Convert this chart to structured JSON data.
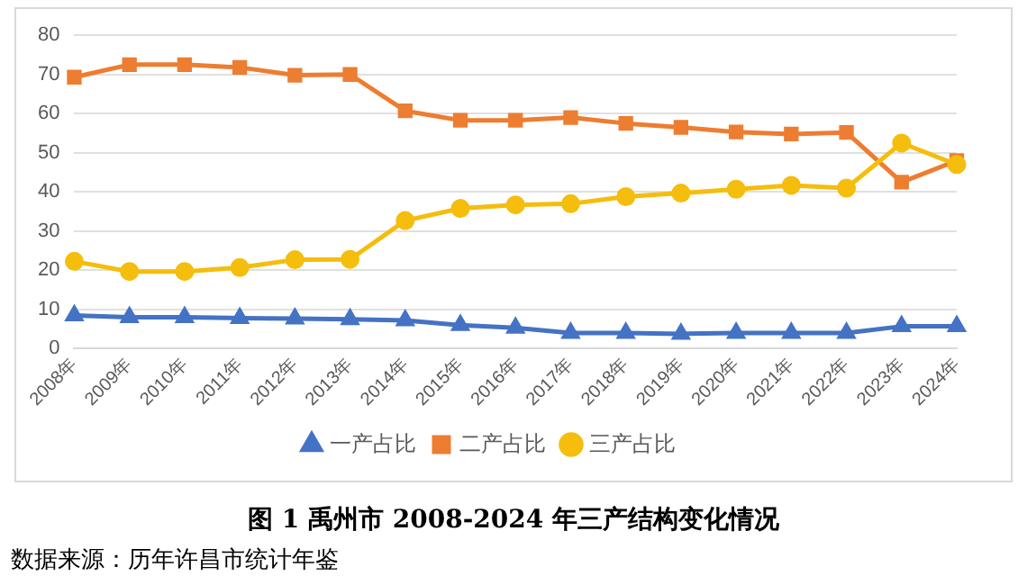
{
  "chart_data": {
    "type": "line",
    "title": "图 1 禹州市 2008-2024 年三产结构变化情况",
    "annotations": [
      "数据来源：历年许昌市统计年鉴"
    ],
    "categories": [
      "2008年",
      "2009年",
      "2010年",
      "2011年",
      "2012年",
      "2013年",
      "2014年",
      "2015年",
      "2016年",
      "2017年",
      "2018年",
      "2019年",
      "2020年",
      "2021年",
      "2022年",
      "2023年",
      "2024年"
    ],
    "series": [
      {
        "name": "一产占比",
        "color": "#4472c4",
        "marker": "triangle",
        "values": [
          8.5,
          8,
          8,
          7.8,
          7.7,
          7.5,
          7.2,
          6,
          5.3,
          4,
          4,
          3.8,
          4,
          4,
          4,
          5.7,
          5.7
        ]
      },
      {
        "name": "二产占比",
        "color": "#ed7d31",
        "marker": "square",
        "values": [
          69.3,
          72.5,
          72.5,
          71.8,
          69.8,
          70,
          60.7,
          58.3,
          58.3,
          59,
          57.5,
          56.5,
          55.3,
          54.8,
          55.2,
          42.5,
          48
        ]
      },
      {
        "name": "三产占比",
        "color": "#f5bd0c",
        "marker": "circle",
        "values": [
          22.3,
          19.7,
          19.7,
          20.7,
          22.7,
          22.8,
          32.7,
          35.8,
          36.7,
          37,
          38.8,
          39.7,
          40.7,
          41.7,
          41,
          52.5,
          47
        ]
      }
    ],
    "ylim": [
      0,
      80
    ],
    "yticks": [
      0,
      10,
      20,
      30,
      40,
      50,
      60,
      70,
      80
    ],
    "grid": "y",
    "legend": "bottom",
    "line_style": "solid"
  }
}
